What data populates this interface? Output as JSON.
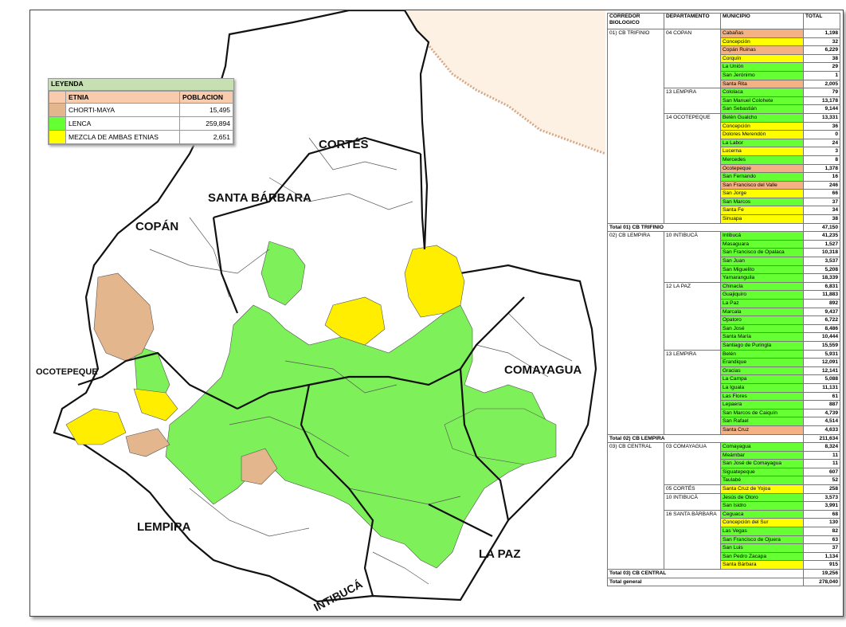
{
  "colors": {
    "chorti": "#e4b68e",
    "lenca": "#7ef05a",
    "mezcla": "#ffee00",
    "border": "#111111",
    "white": "#ffffff",
    "ocean": "#f8d9b6"
  },
  "legend": {
    "title": "LEYENDA",
    "header_etnia": "ETNIA",
    "header_poblacion": "POBLACION",
    "items": [
      {
        "label": "CHORTI-MAYA",
        "value": "15,495",
        "color": "chorti"
      },
      {
        "label": "LENCA",
        "value": "259,894",
        "color": "lenca"
      },
      {
        "label": "MEZCLA DE AMBAS ETNIAS",
        "value": "2,651",
        "color": "mezcla"
      }
    ]
  },
  "departments": {
    "cortes": "CORTÉS",
    "santa_barbara": "SANTA BÁRBARA",
    "copan": "COPÁN",
    "ocotepeque": "OCOTEPEQUE",
    "comayagua": "COMAYAGUA",
    "lempira": "LEMPIRA",
    "intibuca": "INTIBUCÁ",
    "la_paz": "LA PAZ"
  },
  "table": {
    "headers": [
      "CORREDOR BIOLOGICO",
      "DEPARTAMENTO",
      "MUNICIPIO",
      "TOTAL"
    ],
    "corridors": [
      {
        "name": "01) CB TRIFINIO",
        "total_label": "Total 01) CB TRIFINIO",
        "total": "47,150",
        "departments": [
          {
            "name": "04 COPAN",
            "rows": [
              {
                "m": "Cabañas",
                "t": "1,198",
                "c": "o"
              },
              {
                "m": "Concepción",
                "t": "32",
                "c": "y"
              },
              {
                "m": "Copán Ruinas",
                "t": "6,229",
                "c": "o"
              },
              {
                "m": "Corquín",
                "t": "38",
                "c": "y"
              },
              {
                "m": "La Unión",
                "t": "29",
                "c": "g"
              },
              {
                "m": "San Jerónimo",
                "t": "1",
                "c": "g"
              },
              {
                "m": "Santa Rita",
                "t": "2,005",
                "c": "o"
              }
            ]
          },
          {
            "name": "13 LEMPIRA",
            "rows": [
              {
                "m": "Cololaca",
                "t": "79",
                "c": "g"
              },
              {
                "m": "San Manuel Colohete",
                "t": "13,178",
                "c": "g"
              },
              {
                "m": "San Sebastián",
                "t": "9,144",
                "c": "g"
              }
            ]
          },
          {
            "name": "14 OCOTEPEQUE",
            "rows": [
              {
                "m": "Belén Gualcho",
                "t": "13,331",
                "c": "g"
              },
              {
                "m": "Concepción",
                "t": "36",
                "c": "y"
              },
              {
                "m": "Dolores Merendón",
                "t": "0",
                "c": "y"
              },
              {
                "m": "La Labor",
                "t": "24",
                "c": "g"
              },
              {
                "m": "Lucerna",
                "t": "3",
                "c": "y"
              },
              {
                "m": "Mercedes",
                "t": "8",
                "c": "g"
              },
              {
                "m": "Ocotepeque",
                "t": "1,378",
                "c": "o"
              },
              {
                "m": "San Fernando",
                "t": "16",
                "c": "g"
              },
              {
                "m": "San Francisco del Valle",
                "t": "246",
                "c": "o"
              },
              {
                "m": "San Jorge",
                "t": "66",
                "c": "y"
              },
              {
                "m": "San Marcos",
                "t": "37",
                "c": "g"
              },
              {
                "m": "Santa Fe",
                "t": "34",
                "c": "y"
              },
              {
                "m": "Sinuapa",
                "t": "38",
                "c": "y"
              }
            ]
          }
        ]
      },
      {
        "name": "02) CB LEMPIRA",
        "total_label": "Total 02) CB LEMPIRA",
        "total": "211,634",
        "departments": [
          {
            "name": "10 INTIBUCÁ",
            "rows": [
              {
                "m": "Intibucá",
                "t": "41,235",
                "c": "g"
              },
              {
                "m": "Masaguara",
                "t": "1,527",
                "c": "g"
              },
              {
                "m": "San Francisco de Opalaca",
                "t": "10,318",
                "c": "g"
              },
              {
                "m": "San Juan",
                "t": "3,537",
                "c": "g"
              },
              {
                "m": "San Miguelito",
                "t": "5,208",
                "c": "g"
              },
              {
                "m": "Yamaranguila",
                "t": "18,339",
                "c": "g"
              }
            ]
          },
          {
            "name": "12 LA PAZ",
            "rows": [
              {
                "m": "Chinacla",
                "t": "6,831",
                "c": "g"
              },
              {
                "m": "Guajiquiro",
                "t": "11,883",
                "c": "g"
              },
              {
                "m": "La Paz",
                "t": "892",
                "c": "g"
              },
              {
                "m": "Marcala",
                "t": "9,437",
                "c": "g"
              },
              {
                "m": "Opatoro",
                "t": "6,722",
                "c": "g"
              },
              {
                "m": "San José",
                "t": "8,486",
                "c": "g"
              },
              {
                "m": "Santa María",
                "t": "10,444",
                "c": "g"
              },
              {
                "m": "Santiago de Puringla",
                "t": "15,559",
                "c": "g"
              }
            ]
          },
          {
            "name": "13 LEMPIRA",
            "rows": [
              {
                "m": "Belén",
                "t": "5,931",
                "c": "g"
              },
              {
                "m": "Erandique",
                "t": "12,091",
                "c": "g"
              },
              {
                "m": "Gracias",
                "t": "12,141",
                "c": "g"
              },
              {
                "m": "La Campa",
                "t": "5,088",
                "c": "g"
              },
              {
                "m": "La Iguala",
                "t": "11,131",
                "c": "g"
              },
              {
                "m": "Las Flores",
                "t": "61",
                "c": "g"
              },
              {
                "m": "Lepaera",
                "t": "887",
                "c": "g"
              },
              {
                "m": "San Marcos de Caiquín",
                "t": "4,739",
                "c": "g"
              },
              {
                "m": "San Rafael",
                "t": "4,514",
                "c": "g"
              },
              {
                "m": "Santa Cruz",
                "t": "4,633",
                "c": "o"
              }
            ]
          }
        ]
      },
      {
        "name": "03) CB CENTRAL",
        "total_label": "Total 03) CB CENTRAL",
        "total": "19,256",
        "departments": [
          {
            "name": "03 COMAYAGUA",
            "rows": [
              {
                "m": "Comayagua",
                "t": "8,324",
                "c": "g"
              },
              {
                "m": "Meámbar",
                "t": "11",
                "c": "g"
              },
              {
                "m": "San José de Comayagua",
                "t": "11",
                "c": "g"
              },
              {
                "m": "Siguatepeque",
                "t": "607",
                "c": "g"
              },
              {
                "m": "Taulabé",
                "t": "52",
                "c": "g"
              }
            ]
          },
          {
            "name": "05 CORTÉS",
            "rows": [
              {
                "m": "Santa Cruz de Yojoa",
                "t": "258",
                "c": "y"
              }
            ]
          },
          {
            "name": "10 INTIBUCÁ",
            "rows": [
              {
                "m": "Jesús de Otoro",
                "t": "3,573",
                "c": "g"
              },
              {
                "m": "San Isidro",
                "t": "3,991",
                "c": "g"
              }
            ]
          },
          {
            "name": "16 SANTA BÁRBARA",
            "rows": [
              {
                "m": "Ceguaca",
                "t": "68",
                "c": "g"
              },
              {
                "m": "Concepción del Sur",
                "t": "130",
                "c": "y"
              },
              {
                "m": "Las Vegas",
                "t": "82",
                "c": "g"
              },
              {
                "m": "San Francisco de Ojuera",
                "t": "63",
                "c": "g"
              },
              {
                "m": "San Luis",
                "t": "37",
                "c": "g"
              },
              {
                "m": "San Pedro Zacapa",
                "t": "1,134",
                "c": "g"
              },
              {
                "m": "Santa Bárbara",
                "t": "915",
                "c": "y"
              }
            ]
          }
        ]
      }
    ],
    "grand_total_label": "Total general",
    "grand_total": "278,040"
  }
}
